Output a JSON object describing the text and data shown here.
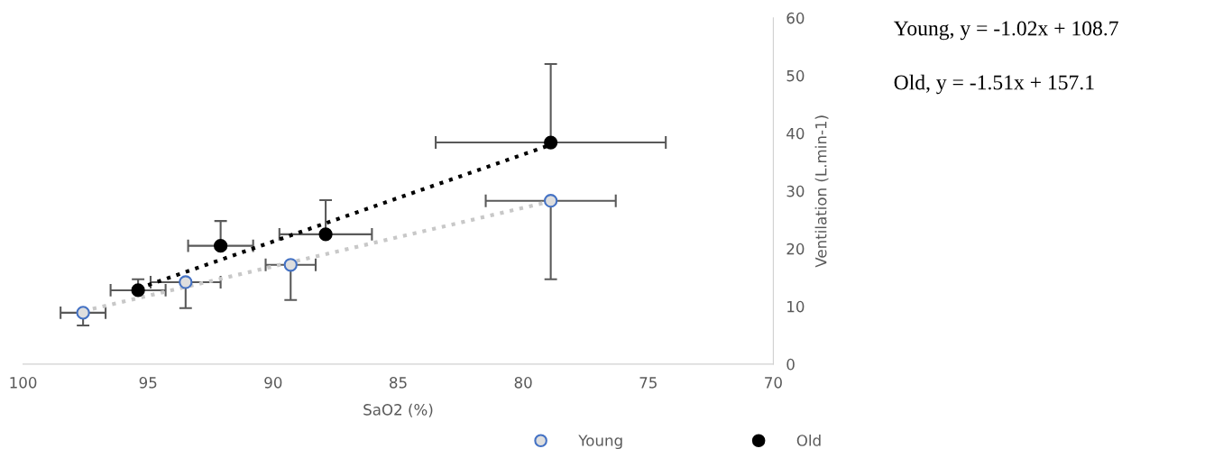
{
  "chart_data": {
    "type": "scatter",
    "xlabel": "SaO2 (%)",
    "ylabel": "Ventilation (L.min-1)",
    "xlim": [
      100,
      70
    ],
    "xticks": [
      100,
      95,
      90,
      85,
      80,
      75,
      70
    ],
    "ylim": [
      0,
      60
    ],
    "yticks": [
      0,
      10,
      20,
      30,
      40,
      50,
      60
    ],
    "grid": false,
    "legend": "bottom",
    "marker": "circle",
    "series": [
      {
        "name": "Young",
        "color": "#4472c4",
        "x": [
          97.6,
          93.5,
          89.3,
          78.9
        ],
        "values": [
          8.9,
          14.2,
          17.2,
          28.3
        ],
        "errors": [
          [
            6.7,
            8.9
          ],
          [
            9.7,
            14.2
          ],
          [
            11.1,
            17.2
          ],
          [
            14.7,
            28.3
          ]
        ],
        "xerrors": [
          0.9,
          1.4,
          1.0,
          2.6
        ]
      },
      {
        "name": "Old",
        "color": "#000000",
        "x": [
          95.4,
          92.1,
          87.9,
          78.9
        ],
        "values": [
          12.8,
          20.5,
          22.5,
          38.4
        ],
        "errors": [
          [
            12.8,
            14.7
          ],
          [
            20.5,
            24.8
          ],
          [
            22.5,
            28.4
          ],
          [
            38.4,
            52.0
          ]
        ],
        "xerrors": [
          1.1,
          1.3,
          1.85,
          4.6
        ]
      },
      {
        "type": "line",
        "color": "#c8c8c8",
        "line_style": "dotted",
        "marker": "none",
        "x": [
          97.6,
          78.9
        ],
        "values": [
          9.2,
          28.2
        ]
      },
      {
        "type": "line",
        "color": "#000000",
        "line_style": "dotted",
        "marker": "none",
        "x": [
          95.0,
          78.9
        ],
        "values": [
          13.7,
          38.0
        ]
      }
    ],
    "annotations": [
      "Young, y = -1.02x + 108.7",
      "Old, y = -1.51x + 157.1"
    ]
  }
}
